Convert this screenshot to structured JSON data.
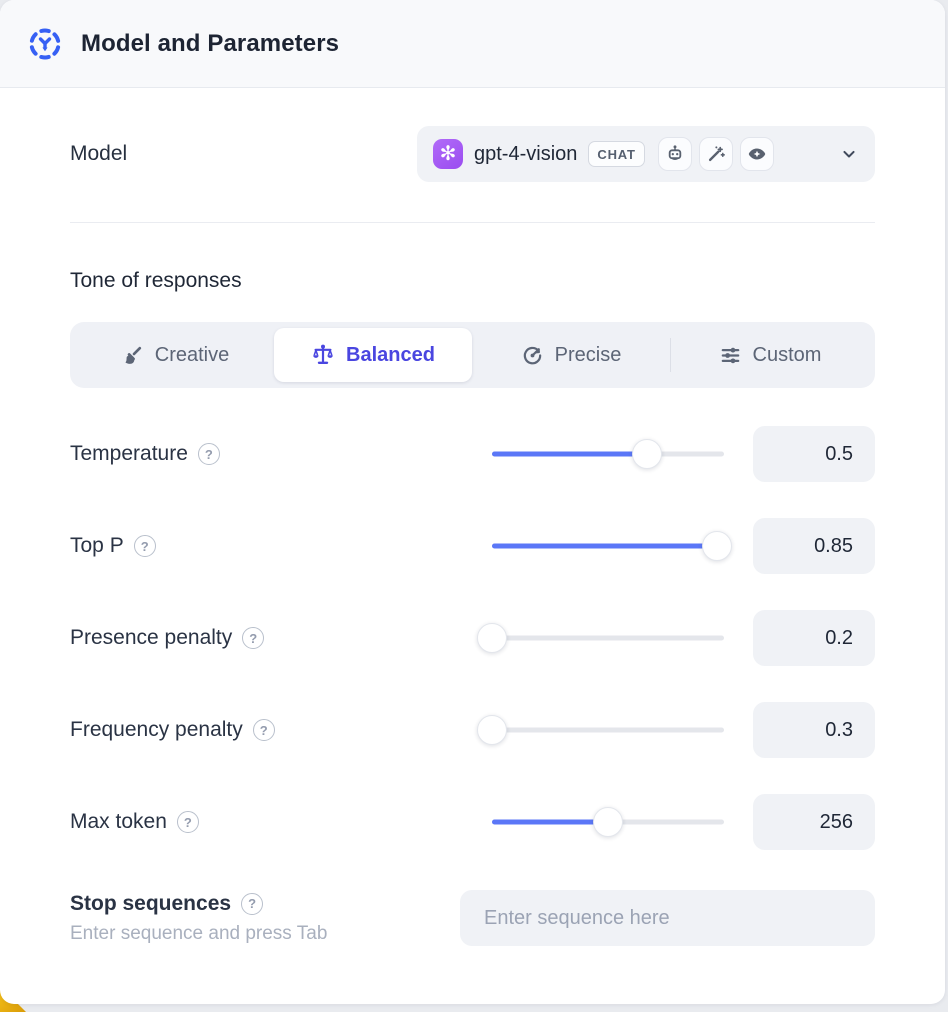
{
  "header": {
    "title": "Model and Parameters"
  },
  "model": {
    "label": "Model",
    "selected_model": "gpt-4-vision",
    "badge": "CHAT",
    "capability_icons": [
      "robot-icon",
      "magic-wand-icon",
      "vision-eye-icon"
    ]
  },
  "tone": {
    "heading": "Tone of responses",
    "options": [
      {
        "label": "Creative",
        "icon": "paintbrush-icon",
        "selected": false
      },
      {
        "label": "Balanced",
        "icon": "balance-scale-icon",
        "selected": true
      },
      {
        "label": "Precise",
        "icon": "target-icon",
        "selected": false
      },
      {
        "label": "Custom",
        "icon": "sliders-icon",
        "selected": false
      }
    ]
  },
  "parameters": [
    {
      "label": "Temperature",
      "value": "0.5",
      "fill_percent": 67
    },
    {
      "label": "Top P",
      "value": "0.85",
      "fill_percent": 97
    },
    {
      "label": "Presence penalty",
      "value": "0.2",
      "fill_percent": 0
    },
    {
      "label": "Frequency penalty",
      "value": "0.3",
      "fill_percent": 0
    },
    {
      "label": "Max token",
      "value": "256",
      "fill_percent": 50
    }
  ],
  "stop_sequences": {
    "label": "Stop sequences",
    "hint": "Enter sequence and press Tab",
    "placeholder": "Enter sequence here"
  },
  "icons": {
    "help": "?",
    "openai": "✻"
  },
  "colors": {
    "accent_indigo": "#4a46e0",
    "slider_blue": "#5b77f7",
    "chip_bg": "#f0f2f6",
    "header_bg": "#f8f9fb",
    "text_dark": "#1f2736",
    "text_muted": "#5c6576",
    "corner_yellow": "#e8b00a"
  }
}
